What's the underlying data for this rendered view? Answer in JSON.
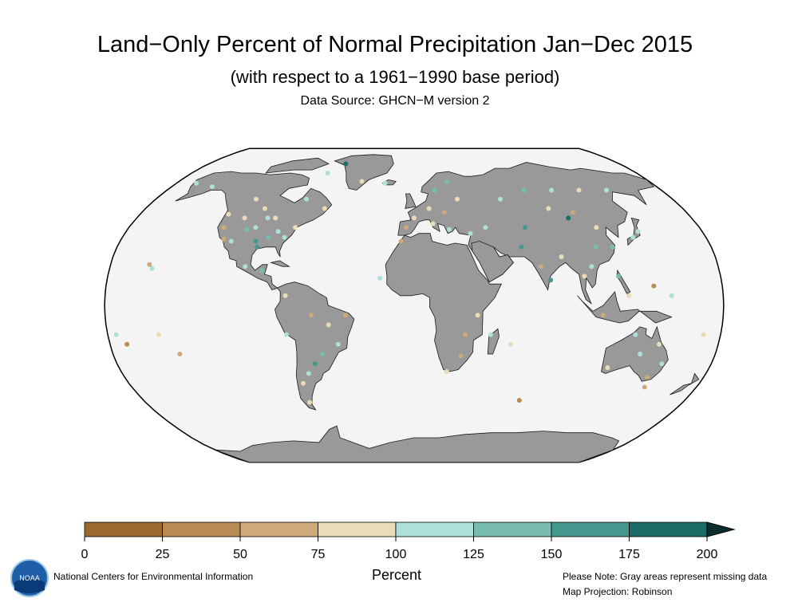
{
  "header": {
    "title": "Land−Only Percent of Normal Precipitation Jan−Dec 2015",
    "subtitle": "(with respect to a 1961−1990 base period)",
    "source": "Data Source: GHCN−M version 2"
  },
  "legend": {
    "units": "Percent",
    "ticks": [
      "0",
      "25",
      "50",
      "75",
      "100",
      "125",
      "150",
      "175",
      "200"
    ],
    "colors": [
      "#9b6a2f",
      "#b98a51",
      "#ceaa7a",
      "#ebdbb6",
      "#ade0da",
      "#79bcb2",
      "#46988f",
      "#1b6e66"
    ],
    "missing_color": "#999999",
    "ocean_color": "#f4f4f4"
  },
  "footer": {
    "agency": "National Centers for Environmental Information",
    "logo_text": "NOAA",
    "note": "Please Note: Gray areas represent missing data",
    "projection": "Map Projection: Robinson"
  },
  "chart_data": {
    "type": "scatter",
    "stations": [
      {
        "lon": -100,
        "lat": 40,
        "pct": 120
      },
      {
        "lon": -97,
        "lat": 33,
        "pct": 170
      },
      {
        "lon": -95,
        "lat": 30,
        "pct": 150
      },
      {
        "lon": -90,
        "lat": 35,
        "pct": 130
      },
      {
        "lon": -85,
        "lat": 38,
        "pct": 110
      },
      {
        "lon": -80,
        "lat": 35,
        "pct": 120
      },
      {
        "lon": -75,
        "lat": 40,
        "pct": 95
      },
      {
        "lon": -105,
        "lat": 39,
        "pct": 130
      },
      {
        "lon": -110,
        "lat": 45,
        "pct": 80
      },
      {
        "lon": -120,
        "lat": 40,
        "pct": 70
      },
      {
        "lon": -122,
        "lat": 47,
        "pct": 90
      },
      {
        "lon": -117,
        "lat": 34,
        "pct": 60
      },
      {
        "lon": -112,
        "lat": 33,
        "pct": 110
      },
      {
        "lon": -90,
        "lat": 45,
        "pct": 95
      },
      {
        "lon": -95,
        "lat": 45,
        "pct": 120
      },
      {
        "lon": -100,
        "lat": 50,
        "pct": 85
      },
      {
        "lon": -110,
        "lat": 55,
        "pct": 75
      },
      {
        "lon": -75,
        "lat": 55,
        "pct": 100
      },
      {
        "lon": -60,
        "lat": 50,
        "pct": 90
      },
      {
        "lon": -150,
        "lat": 62,
        "pct": 110
      },
      {
        "lon": -165,
        "lat": 64,
        "pct": 120
      },
      {
        "lon": -100,
        "lat": 20,
        "pct": 120
      },
      {
        "lon": -90,
        "lat": 18,
        "pct": 140
      },
      {
        "lon": -157,
        "lat": 21,
        "pct": 50
      },
      {
        "lon": -155,
        "lat": 19,
        "pct": 120
      },
      {
        "lon": -75,
        "lat": 5,
        "pct": 80
      },
      {
        "lon": -60,
        "lat": -5,
        "pct": 70
      },
      {
        "lon": -50,
        "lat": -10,
        "pct": 80
      },
      {
        "lon": -45,
        "lat": -20,
        "pct": 110
      },
      {
        "lon": -55,
        "lat": -25,
        "pct": 140
      },
      {
        "lon": -60,
        "lat": -30,
        "pct": 150
      },
      {
        "lon": -65,
        "lat": -35,
        "pct": 120
      },
      {
        "lon": -70,
        "lat": -40,
        "pct": 90
      },
      {
        "lon": -70,
        "lat": -50,
        "pct": 80
      },
      {
        "lon": -75,
        "lat": -15,
        "pct": 110
      },
      {
        "lon": -40,
        "lat": -5,
        "pct": 65
      },
      {
        "lon": -150,
        "lat": -15,
        "pct": 80
      },
      {
        "lon": -140,
        "lat": -25,
        "pct": 60
      },
      {
        "lon": -175,
        "lat": -15,
        "pct": 115
      },
      {
        "lon": 0,
        "lat": 45,
        "pct": 75
      },
      {
        "lon": 10,
        "lat": 50,
        "pct": 80
      },
      {
        "lon": 20,
        "lat": 48,
        "pct": 70
      },
      {
        "lon": 30,
        "lat": 55,
        "pct": 90
      },
      {
        "lon": 15,
        "lat": 60,
        "pct": 130
      },
      {
        "lon": 25,
        "lat": 65,
        "pct": 140
      },
      {
        "lon": -5,
        "lat": 40,
        "pct": 70
      },
      {
        "lon": 12,
        "lat": 42,
        "pct": 80
      },
      {
        "lon": 22,
        "lat": 39,
        "pct": 110
      },
      {
        "lon": -8,
        "lat": 33,
        "pct": 65
      },
      {
        "lon": 35,
        "lat": 37,
        "pct": 120
      },
      {
        "lon": 45,
        "lat": 40,
        "pct": 100
      },
      {
        "lon": 60,
        "lat": 55,
        "pct": 110
      },
      {
        "lon": 80,
        "lat": 60,
        "pct": 130
      },
      {
        "lon": 100,
        "lat": 60,
        "pct": 120
      },
      {
        "lon": 120,
        "lat": 60,
        "pct": 90
      },
      {
        "lon": 140,
        "lat": 60,
        "pct": 110
      },
      {
        "lon": 90,
        "lat": 50,
        "pct": 80
      },
      {
        "lon": 105,
        "lat": 48,
        "pct": 70
      },
      {
        "lon": 100,
        "lat": 45,
        "pct": 175
      },
      {
        "lon": 115,
        "lat": 40,
        "pct": 80
      },
      {
        "lon": 110,
        "lat": 30,
        "pct": 130
      },
      {
        "lon": 120,
        "lat": 30,
        "pct": 140
      },
      {
        "lon": 135,
        "lat": 35,
        "pct": 120
      },
      {
        "lon": 140,
        "lat": 38,
        "pct": 110
      },
      {
        "lon": 70,
        "lat": 40,
        "pct": 150
      },
      {
        "lon": 65,
        "lat": 30,
        "pct": 160
      },
      {
        "lon": 75,
        "lat": 20,
        "pct": 70
      },
      {
        "lon": 80,
        "lat": 13,
        "pct": 160
      },
      {
        "lon": 88,
        "lat": 25,
        "pct": 90
      },
      {
        "lon": 100,
        "lat": 15,
        "pct": 80
      },
      {
        "lon": 105,
        "lat": 20,
        "pct": 110
      },
      {
        "lon": 120,
        "lat": 15,
        "pct": 130
      },
      {
        "lon": 110,
        "lat": -5,
        "pct": 70
      },
      {
        "lon": 125,
        "lat": 5,
        "pct": 80
      },
      {
        "lon": 140,
        "lat": 10,
        "pct": 40
      },
      {
        "lon": 150,
        "lat": 5,
        "pct": 110
      },
      {
        "lon": -20,
        "lat": 14,
        "pct": 100
      },
      {
        "lon": 37,
        "lat": -5,
        "pct": 90
      },
      {
        "lon": 30,
        "lat": -15,
        "pct": 70
      },
      {
        "lon": 28,
        "lat": -26,
        "pct": 60
      },
      {
        "lon": 20,
        "lat": -34,
        "pct": 80
      },
      {
        "lon": 45,
        "lat": -15,
        "pct": 120
      },
      {
        "lon": 57,
        "lat": -20,
        "pct": 90
      },
      {
        "lon": 70,
        "lat": -49,
        "pct": 40
      },
      {
        "lon": 130,
        "lat": -15,
        "pct": 120
      },
      {
        "lon": 135,
        "lat": -25,
        "pct": 110
      },
      {
        "lon": 145,
        "lat": -20,
        "pct": 80
      },
      {
        "lon": 150,
        "lat": -30,
        "pct": 120
      },
      {
        "lon": 145,
        "lat": -37,
        "pct": 70
      },
      {
        "lon": 118,
        "lat": -32,
        "pct": 90
      },
      {
        "lon": 147,
        "lat": -42,
        "pct": 60
      },
      {
        "lon": 170,
        "lat": -15,
        "pct": 80
      },
      {
        "lon": -40,
        "lat": 65,
        "pct": 90
      },
      {
        "lon": -22,
        "lat": 64,
        "pct": 120
      },
      {
        "lon": -60,
        "lat": 76,
        "pct": 190
      },
      {
        "lon": -70,
        "lat": 70,
        "pct": 120
      },
      {
        "lon": -170,
        "lat": -20,
        "pct": 30
      }
    ]
  }
}
